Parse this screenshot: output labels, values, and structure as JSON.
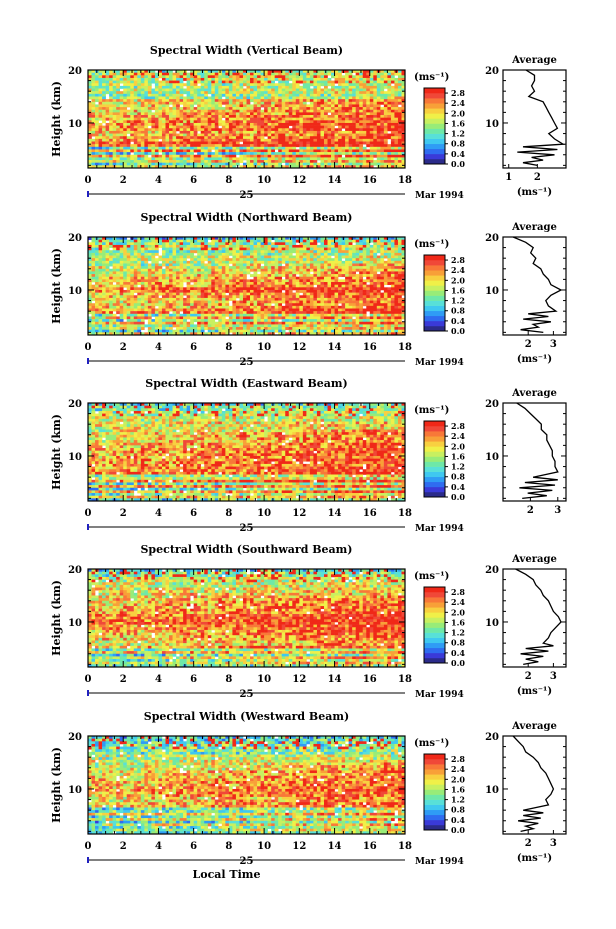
{
  "figure": {
    "date_label": "Mar 1994",
    "day_label": "25",
    "xlabel": "Local Time",
    "ylabel": "Height (km)",
    "colorbar_unit": "(ms⁻¹)",
    "avg_title": "Average",
    "avg_unit": "(ms⁻¹)"
  },
  "chart_data": [
    {
      "type": "heatmap",
      "title": "Spectral Width (Vertical Beam)",
      "xlabel": "",
      "ylabel": "Height (km)",
      "x_ticks": [
        0,
        2,
        4,
        6,
        8,
        10,
        12,
        14,
        16,
        18
      ],
      "xlim": [
        0,
        18
      ],
      "y_ticks": [
        10,
        20
      ],
      "ylim": [
        1.5,
        20
      ],
      "colorbar": {
        "ticks": [
          0.0,
          0.4,
          0.8,
          1.2,
          1.6,
          2.0,
          2.4,
          2.8
        ],
        "range": [
          0,
          3.0
        ]
      },
      "profile": {
        "title": "Average",
        "xlabel": "(ms⁻¹)",
        "x_ticks": [
          1,
          2
        ],
        "xlim": [
          0.8,
          3.0
        ],
        "heights": [
          20,
          19,
          18,
          17,
          16,
          15,
          14,
          13,
          12,
          11,
          10,
          9,
          8,
          7,
          6,
          5.5,
          5,
          4.5,
          4,
          3.5,
          3,
          2.5,
          2
        ],
        "values": [
          1.6,
          1.9,
          1.9,
          1.8,
          1.9,
          1.7,
          2.2,
          2.3,
          2.4,
          2.5,
          2.6,
          2.7,
          2.4,
          2.6,
          2.9,
          1.5,
          2.7,
          1.3,
          2.6,
          1.8,
          2.2,
          1.5,
          2.0
        ]
      }
    },
    {
      "type": "heatmap",
      "title": "Spectral Width (Northward Beam)",
      "xlabel": "",
      "ylabel": "Height (km)",
      "x_ticks": [
        0,
        2,
        4,
        6,
        8,
        10,
        12,
        14,
        16,
        18
      ],
      "xlim": [
        0,
        18
      ],
      "y_ticks": [
        10,
        20
      ],
      "ylim": [
        1.5,
        20
      ],
      "colorbar": {
        "ticks": [
          0.0,
          0.4,
          0.8,
          1.2,
          1.6,
          2.0,
          2.4,
          2.8
        ],
        "range": [
          0,
          3.0
        ]
      },
      "profile": {
        "title": "Average",
        "xlabel": "(ms⁻¹)",
        "x_ticks": [
          2,
          3
        ],
        "xlim": [
          1.0,
          3.5
        ],
        "heights": [
          20,
          19,
          18,
          17,
          16,
          15,
          14,
          13,
          12,
          11,
          10,
          9,
          8,
          7,
          6,
          5.5,
          5,
          4.5,
          4,
          3.5,
          3,
          2.5,
          2
        ],
        "values": [
          1.4,
          1.9,
          2.2,
          2.1,
          2.3,
          2.2,
          2.5,
          2.6,
          2.8,
          2.9,
          3.3,
          2.9,
          2.7,
          2.8,
          3.1,
          2.0,
          2.8,
          1.8,
          2.9,
          2.2,
          2.4,
          1.7,
          2.6
        ]
      }
    },
    {
      "type": "heatmap",
      "title": "Spectral Width (Eastward Beam)",
      "xlabel": "",
      "ylabel": "Height (km)",
      "x_ticks": [
        0,
        2,
        4,
        6,
        8,
        10,
        12,
        14,
        16,
        18
      ],
      "xlim": [
        0,
        18
      ],
      "y_ticks": [
        10,
        20
      ],
      "ylim": [
        1.5,
        20
      ],
      "colorbar": {
        "ticks": [
          0.0,
          0.4,
          0.8,
          1.2,
          1.6,
          2.0,
          2.4,
          2.8
        ],
        "range": [
          0,
          3.0
        ]
      },
      "profile": {
        "title": "Average",
        "xlabel": "",
        "x_ticks": [
          2,
          3
        ],
        "xlim": [
          1.0,
          3.3
        ],
        "heights": [
          20,
          19,
          18,
          17,
          16,
          15,
          14,
          13,
          12,
          11,
          10,
          9,
          8,
          7,
          6,
          5.5,
          5,
          4.5,
          4,
          3.5,
          3,
          2.5,
          2
        ],
        "values": [
          1.5,
          1.8,
          2.0,
          2.2,
          2.4,
          2.4,
          2.6,
          2.6,
          2.7,
          2.8,
          2.8,
          2.9,
          2.9,
          3.0,
          2.1,
          3.0,
          1.8,
          2.9,
          1.6,
          2.8,
          1.9,
          2.6,
          1.7
        ]
      }
    },
    {
      "type": "heatmap",
      "title": "Spectral Width (Southward Beam)",
      "xlabel": "",
      "ylabel": "Height (km)",
      "x_ticks": [
        0,
        2,
        4,
        6,
        8,
        10,
        12,
        14,
        16,
        18
      ],
      "xlim": [
        0,
        18
      ],
      "y_ticks": [
        10,
        20
      ],
      "ylim": [
        1.5,
        20
      ],
      "colorbar": {
        "ticks": [
          0.0,
          0.4,
          0.8,
          1.2,
          1.6,
          2.0,
          2.4,
          2.8
        ],
        "range": [
          0,
          3.0
        ]
      },
      "profile": {
        "title": "Average",
        "xlabel": "(ms⁻¹)",
        "x_ticks": [
          2,
          3
        ],
        "xlim": [
          1.0,
          3.5
        ],
        "heights": [
          20,
          19,
          18,
          17,
          16,
          15,
          14,
          13,
          12,
          11,
          10,
          9,
          8,
          7,
          6,
          5.5,
          5,
          4.5,
          4,
          3.5,
          3,
          2.5,
          2
        ],
        "values": [
          1.5,
          1.9,
          2.2,
          2.3,
          2.5,
          2.6,
          2.8,
          2.9,
          3.0,
          3.2,
          3.3,
          3.1,
          2.9,
          2.8,
          2.6,
          3.0,
          1.9,
          2.8,
          1.7,
          2.6,
          1.9,
          2.4,
          1.8
        ]
      }
    },
    {
      "type": "heatmap",
      "title": "Spectral Width (Westward Beam)",
      "xlabel": "Local Time",
      "ylabel": "Height (km)",
      "x_ticks": [
        0,
        2,
        4,
        6,
        8,
        10,
        12,
        14,
        16,
        18
      ],
      "xlim": [
        0,
        18
      ],
      "y_ticks": [
        10,
        20
      ],
      "ylim": [
        1.5,
        20
      ],
      "colorbar": {
        "ticks": [
          0.0,
          0.4,
          0.8,
          1.2,
          1.6,
          2.0,
          2.4,
          2.8
        ],
        "range": [
          0,
          3.0
        ]
      },
      "profile": {
        "title": "Average",
        "xlabel": "(ms⁻¹)",
        "x_ticks": [
          2,
          3
        ],
        "xlim": [
          1.0,
          3.5
        ],
        "heights": [
          20,
          19,
          18,
          17,
          16,
          15,
          14,
          13,
          12,
          11,
          10,
          9,
          8,
          7,
          6,
          5.5,
          5,
          4.5,
          4,
          3.5,
          3,
          2.5,
          2
        ],
        "values": [
          1.4,
          1.6,
          1.8,
          1.9,
          2.2,
          2.4,
          2.5,
          2.7,
          2.8,
          2.9,
          3.0,
          2.9,
          2.7,
          2.8,
          1.8,
          2.6,
          1.8,
          2.5,
          1.6,
          2.4,
          1.9,
          2.2,
          1.7
        ]
      }
    }
  ]
}
